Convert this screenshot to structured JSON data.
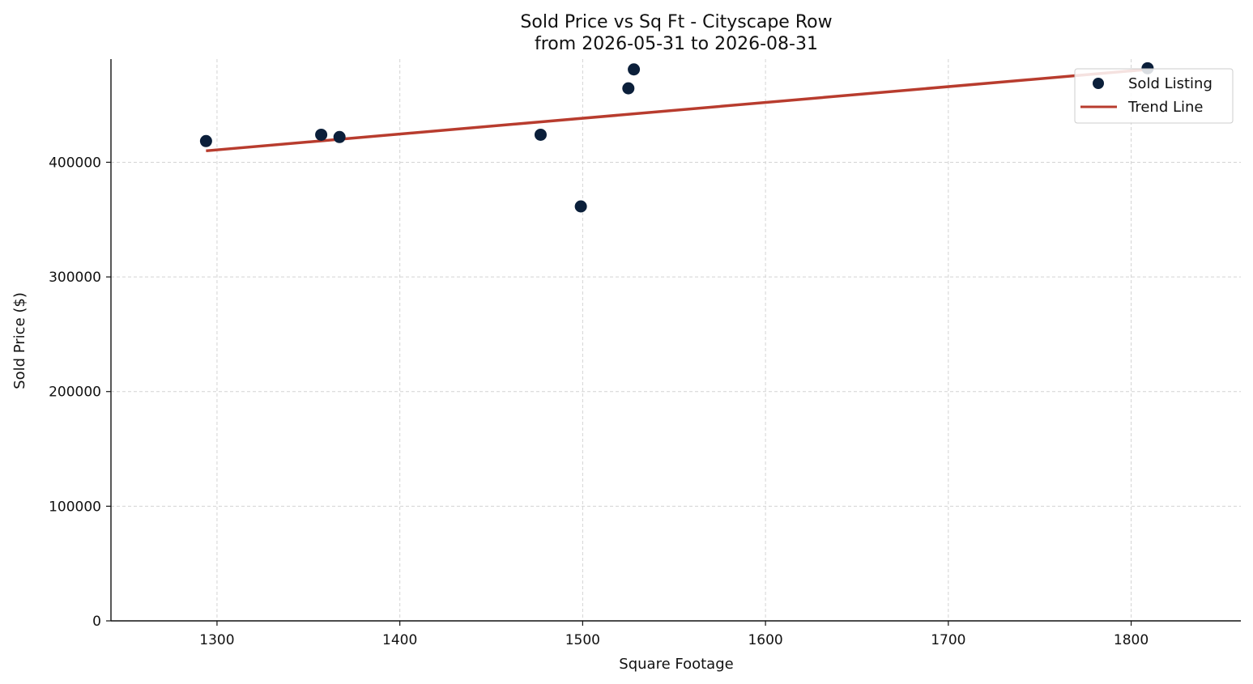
{
  "colors": {
    "point": "#0b1f3a",
    "trend": "#b83c2e",
    "grid": "#d4d4d4"
  },
  "chart_data": {
    "type": "scatter",
    "title": "Sold Price vs Sq Ft - Cityscape Row",
    "subtitle": "from 2026-05-31 to 2026-08-31",
    "xlabel": "Square Footage",
    "ylabel": "Sold Price ($)",
    "xlim": [
      1242,
      1860
    ],
    "ylim": [
      0,
      490000
    ],
    "xticks": [
      1300,
      1400,
      1500,
      1600,
      1700,
      1800
    ],
    "yticks": [
      0,
      100000,
      200000,
      300000,
      400000
    ],
    "grid": true,
    "legend": {
      "position": "top-right",
      "entries": [
        "Sold Listing",
        "Trend Line"
      ]
    },
    "series": [
      {
        "name": "Sold Listing",
        "kind": "scatter",
        "points": [
          {
            "x": 1294,
            "y": 418500
          },
          {
            "x": 1357,
            "y": 424000
          },
          {
            "x": 1367,
            "y": 422000
          },
          {
            "x": 1477,
            "y": 424000
          },
          {
            "x": 1499,
            "y": 361500
          },
          {
            "x": 1525,
            "y": 464500
          },
          {
            "x": 1528,
            "y": 481000
          },
          {
            "x": 1809,
            "y": 482000
          }
        ]
      },
      {
        "name": "Trend Line",
        "kind": "line",
        "points": [
          {
            "x": 1294,
            "y": 410000
          },
          {
            "x": 1809,
            "y": 481000
          }
        ]
      }
    ]
  }
}
